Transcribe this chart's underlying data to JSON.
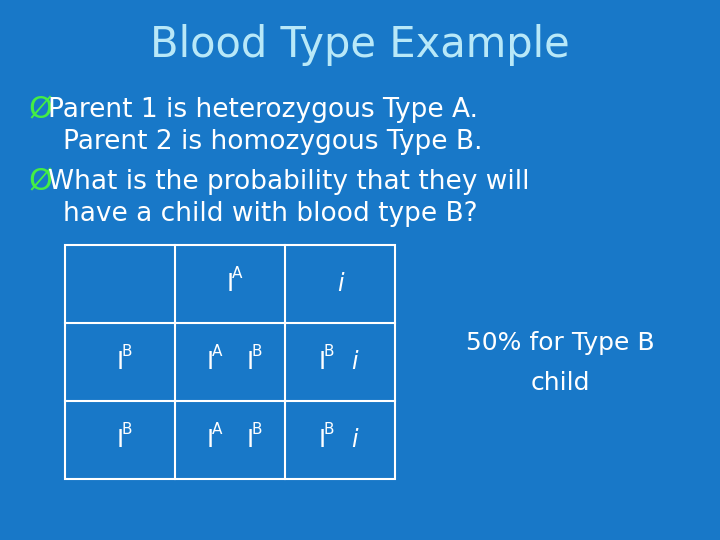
{
  "title": "Blood Type Example",
  "title_color": "#b8e8f8",
  "bg_color": "#1878c8",
  "bullet_color": "#44ee44",
  "text_color": "#ffffff",
  "bullet1_line1": "Parent 1 is heterozygous Type A.",
  "bullet1_line2": "Parent 2 is homozygous Type B.",
  "bullet2_line1": "What is the probability that they will",
  "bullet2_line2": "have a child with blood type B?",
  "side_note_line1": "50% for Type B",
  "side_note_line2": "child"
}
